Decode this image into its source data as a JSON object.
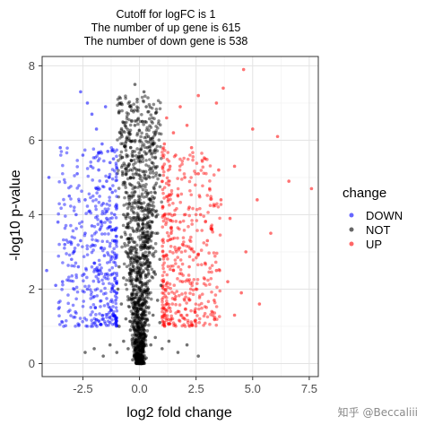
{
  "chart_data": {
    "type": "scatter",
    "title": [
      "Cutoff for logFC is 1",
      "The number of up gene is 615",
      "The number of down gene is 538"
    ],
    "xlabel": "log2 fold change",
    "ylabel": "-log10 p-value",
    "xlim": [
      -4.3,
      7.9
    ],
    "ylim": [
      -0.35,
      8.25
    ],
    "x_ticks": [
      -2.5,
      0.0,
      2.5,
      5.0,
      7.5
    ],
    "x_tick_labels": [
      "-2.5",
      "0.0",
      "2.5",
      "5.0",
      "7.5"
    ],
    "y_ticks": [
      0,
      2,
      4,
      6,
      8
    ],
    "y_tick_labels": [
      "0",
      "2",
      "4",
      "6",
      "8"
    ],
    "grid": true,
    "legend": {
      "title": "change",
      "position": "right",
      "entries": [
        "DOWN",
        "NOT",
        "UP"
      ]
    },
    "logfc_cutoff": 1,
    "up_count": 615,
    "down_count": 538,
    "series": [
      {
        "name": "DOWN",
        "color": "#0000ff",
        "points": [
          [
            -4.0,
            5.0
          ],
          [
            -3.5,
            5.8
          ],
          [
            -3.4,
            2.2
          ],
          [
            -2.6,
            7.3
          ],
          [
            -2.3,
            7.0
          ],
          [
            -2.1,
            6.7
          ],
          [
            -1.9,
            6.3
          ],
          [
            -1.5,
            6.9
          ],
          [
            -1.4,
            5.7
          ],
          [
            -1.3,
            5.4
          ],
          [
            -1.8,
            5.2
          ],
          [
            -2.5,
            5.6
          ],
          [
            -3.1,
            4.5
          ],
          [
            -2.8,
            4.0
          ],
          [
            -2.2,
            4.1
          ],
          [
            -1.6,
            4.3
          ],
          [
            -1.2,
            4.6
          ],
          [
            -3.3,
            3.2
          ],
          [
            -2.9,
            3.0
          ],
          [
            -2.4,
            3.5
          ],
          [
            -1.7,
            3.1
          ],
          [
            -1.1,
            3.3
          ],
          [
            -2.0,
            2.7
          ],
          [
            -1.5,
            2.4
          ],
          [
            -1.2,
            2.0
          ],
          [
            -4.1,
            2.5
          ],
          [
            -3.7,
            2.1
          ],
          [
            -2.7,
            2.6
          ],
          [
            -2.0,
            1.8
          ],
          [
            -1.4,
            1.6
          ],
          [
            -1.1,
            1.3
          ],
          [
            -1.3,
            1.1
          ],
          [
            -1.6,
            1.2
          ],
          [
            -1.8,
            2.2
          ],
          [
            -2.3,
            2.0
          ],
          [
            -1.05,
            1.7
          ],
          [
            -1.0,
            1.9
          ],
          [
            -1.25,
            2.8
          ],
          [
            -1.15,
            3.6
          ],
          [
            -1.45,
            3.9
          ],
          [
            -2.6,
            3.3
          ],
          [
            -3.0,
            2.8
          ],
          [
            -1.9,
            4.7
          ],
          [
            -1.35,
            5.0
          ],
          [
            -1.1,
            4.0
          ],
          [
            -2.1,
            3.7
          ],
          [
            -1.55,
            2.9
          ],
          [
            -1.75,
            3.6
          ],
          [
            -2.45,
            2.4
          ],
          [
            -1.3,
            1.5
          ],
          [
            -1.05,
            1.1
          ],
          [
            -1.2,
            2.4
          ],
          [
            -2.15,
            5.3
          ],
          [
            -1.65,
            5.9
          ],
          [
            -3.6,
            3.8
          ],
          [
            -1.95,
            1.5
          ],
          [
            -2.4,
            4.4
          ],
          [
            -1.45,
            4.9
          ],
          [
            -2.75,
            5.1
          ],
          [
            -1.15,
            5.5
          ]
        ]
      },
      {
        "name": "NOT",
        "color": "#000000",
        "points": [
          [
            0.0,
            0.05
          ],
          [
            -0.1,
            0.2
          ],
          [
            0.15,
            0.3
          ],
          [
            -0.3,
            0.1
          ],
          [
            0.3,
            0.15
          ],
          [
            -0.5,
            0.4
          ],
          [
            0.5,
            0.5
          ],
          [
            -0.7,
            0.6
          ],
          [
            0.7,
            0.7
          ],
          [
            -0.2,
            0.55
          ],
          [
            0.25,
            0.7
          ],
          [
            -0.9,
            1.0
          ],
          [
            0.9,
            1.1
          ],
          [
            -0.6,
            1.2
          ],
          [
            0.6,
            1.3
          ],
          [
            -0.8,
            1.6
          ],
          [
            0.8,
            1.7
          ],
          [
            -0.95,
            2.0
          ],
          [
            0.95,
            2.1
          ],
          [
            -0.7,
            2.3
          ],
          [
            0.7,
            2.4
          ],
          [
            -0.9,
            2.6
          ],
          [
            0.9,
            2.8
          ],
          [
            -0.6,
            3.0
          ],
          [
            0.6,
            3.1
          ],
          [
            -0.8,
            3.4
          ],
          [
            0.8,
            3.5
          ],
          [
            -0.5,
            3.7
          ],
          [
            0.55,
            3.8
          ],
          [
            -0.7,
            4.0
          ],
          [
            0.75,
            4.1
          ],
          [
            -0.45,
            4.3
          ],
          [
            0.5,
            4.4
          ],
          [
            -0.6,
            4.6
          ],
          [
            0.65,
            4.7
          ],
          [
            -0.4,
            5.0
          ],
          [
            0.45,
            5.0
          ],
          [
            -0.5,
            5.3
          ],
          [
            0.55,
            5.4
          ],
          [
            -0.3,
            5.7
          ],
          [
            0.35,
            5.8
          ],
          [
            -0.45,
            6.0
          ],
          [
            0.4,
            6.1
          ],
          [
            -0.2,
            6.4
          ],
          [
            0.25,
            6.5
          ],
          [
            -0.35,
            6.8
          ],
          [
            0.3,
            6.9
          ],
          [
            -0.1,
            7.1
          ],
          [
            0.2,
            7.3
          ],
          [
            -0.2,
            7.5
          ],
          [
            0.0,
            2.0
          ],
          [
            -0.3,
            2.5
          ],
          [
            0.4,
            1.9
          ],
          [
            -0.4,
            0.9
          ],
          [
            0.2,
            1.0
          ],
          [
            -1.0,
            0.3
          ],
          [
            1.0,
            0.4
          ],
          [
            -1.3,
            0.5
          ],
          [
            1.3,
            0.6
          ],
          [
            -1.6,
            0.2
          ],
          [
            1.7,
            0.3
          ],
          [
            -2.0,
            0.4
          ],
          [
            2.1,
            0.5
          ],
          [
            -2.4,
            0.3
          ],
          [
            2.6,
            0.2
          ]
        ]
      },
      {
        "name": "UP",
        "color": "#ff0000",
        "points": [
          [
            4.6,
            7.9
          ],
          [
            3.7,
            7.4
          ],
          [
            3.4,
            7.0
          ],
          [
            2.6,
            7.2
          ],
          [
            2.1,
            6.4
          ],
          [
            1.8,
            6.9
          ],
          [
            1.5,
            6.2
          ],
          [
            1.2,
            6.6
          ],
          [
            1.1,
            5.9
          ],
          [
            1.6,
            5.6
          ],
          [
            2.3,
            5.8
          ],
          [
            2.9,
            5.5
          ],
          [
            3.5,
            5.2
          ],
          [
            4.2,
            5.3
          ],
          [
            5.0,
            6.3
          ],
          [
            6.1,
            6.1
          ],
          [
            7.6,
            4.7
          ],
          [
            6.6,
            4.9
          ],
          [
            5.8,
            3.5
          ],
          [
            5.2,
            4.4
          ],
          [
            4.7,
            3.0
          ],
          [
            4.0,
            3.9
          ],
          [
            3.6,
            4.4
          ],
          [
            3.2,
            3.6
          ],
          [
            2.7,
            4.0
          ],
          [
            2.2,
            4.2
          ],
          [
            1.7,
            4.5
          ],
          [
            1.3,
            4.8
          ],
          [
            1.1,
            4.0
          ],
          [
            1.4,
            3.5
          ],
          [
            1.9,
            3.2
          ],
          [
            2.4,
            3.0
          ],
          [
            2.9,
            2.7
          ],
          [
            3.4,
            2.5
          ],
          [
            3.9,
            2.2
          ],
          [
            4.5,
            1.9
          ],
          [
            5.3,
            1.6
          ],
          [
            4.2,
            1.3
          ],
          [
            3.3,
            1.7
          ],
          [
            2.5,
            2.0
          ],
          [
            1.9,
            2.2
          ],
          [
            1.5,
            2.5
          ],
          [
            1.2,
            2.9
          ],
          [
            1.05,
            2.2
          ],
          [
            1.2,
            1.6
          ],
          [
            1.4,
            1.2
          ],
          [
            1.7,
            1.4
          ],
          [
            2.1,
            1.3
          ],
          [
            1.1,
            1.1
          ],
          [
            1.05,
            1.5
          ],
          [
            1.25,
            3.3
          ],
          [
            1.55,
            4.0
          ],
          [
            2.0,
            5.0
          ],
          [
            2.6,
            5.1
          ],
          [
            3.1,
            4.7
          ],
          [
            1.35,
            5.3
          ],
          [
            1.8,
            3.8
          ],
          [
            2.2,
            2.6
          ],
          [
            1.6,
            1.8
          ],
          [
            3.0,
            3.3
          ]
        ]
      }
    ]
  },
  "watermark": "知乎 @Beccaliii"
}
